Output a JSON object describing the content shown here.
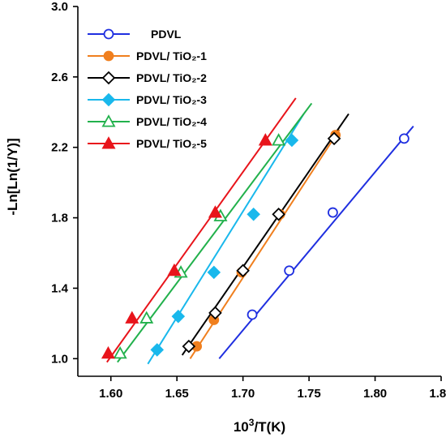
{
  "chart_data": {
    "type": "scatter",
    "title": "",
    "xlabel": "10³/T(K)",
    "ylabel": "-Ln[Ln(1/Y)]",
    "xlim": [
      1.575,
      1.85
    ],
    "ylim": [
      0.9,
      3.0
    ],
    "xticks": [
      1.6,
      1.65,
      1.7,
      1.75,
      1.8,
      1.85
    ],
    "xtick_labels": [
      "1.60",
      "1.65",
      "1.70",
      "1.75",
      "1.80",
      "1.85"
    ],
    "yticks": [
      1.0,
      1.4,
      1.8,
      2.2,
      2.6,
      3.0
    ],
    "ytick_labels": [
      "1.0",
      "1.4",
      "1.8",
      "2.2",
      "2.6",
      "3.0"
    ],
    "grid": false,
    "legend_position": "top-left",
    "series": [
      {
        "name": "PDVL",
        "color": "#1f2fe0",
        "marker": "circle-open",
        "x": [
          1.707,
          1.735,
          1.768,
          1.822
        ],
        "y": [
          1.25,
          1.5,
          1.83,
          2.25
        ],
        "fit": [
          [
            1.682,
            1.0
          ],
          [
            1.829,
            2.32
          ]
        ]
      },
      {
        "name": "PDVL/ TiO₂-1",
        "color": "#f07f1e",
        "marker": "circle-filled",
        "x": [
          1.665,
          1.678,
          1.699,
          1.728,
          1.77
        ],
        "y": [
          1.07,
          1.22,
          1.49,
          1.82,
          2.27
        ],
        "fit": [
          [
            1.66,
            1.0
          ],
          [
            1.773,
            2.3
          ]
        ]
      },
      {
        "name": "PDVL/ TiO₂-2",
        "color": "#000000",
        "marker": "diamond-open",
        "x": [
          1.659,
          1.679,
          1.7,
          1.727,
          1.769
        ],
        "y": [
          1.07,
          1.26,
          1.5,
          1.82,
          2.25
        ],
        "fit": [
          [
            1.654,
            1.02
          ],
          [
            1.78,
            2.39
          ]
        ]
      },
      {
        "name": "PDVL/ TiO₂-3",
        "color": "#19b8ec",
        "marker": "diamond-filled",
        "x": [
          1.635,
          1.651,
          1.678,
          1.708,
          1.737
        ],
        "y": [
          1.05,
          1.24,
          1.49,
          1.82,
          2.24
        ],
        "fit": [
          [
            1.628,
            0.97
          ],
          [
            1.746,
            2.39
          ]
        ]
      },
      {
        "name": "PDVL/ TiO₂-4",
        "color": "#22b14c",
        "marker": "triangle-open",
        "x": [
          1.607,
          1.627,
          1.653,
          1.683,
          1.727
        ],
        "y": [
          1.03,
          1.23,
          1.49,
          1.81,
          2.24
        ],
        "fit": [
          [
            1.605,
            0.98
          ],
          [
            1.752,
            2.45
          ]
        ]
      },
      {
        "name": "PDVL/ TiO₂-5",
        "color": "#e8141b",
        "marker": "triangle-filled",
        "x": [
          1.598,
          1.616,
          1.648,
          1.679,
          1.717
        ],
        "y": [
          1.03,
          1.23,
          1.5,
          1.83,
          2.24
        ],
        "fit": [
          [
            1.597,
            0.98
          ],
          [
            1.74,
            2.48
          ]
        ]
      }
    ]
  }
}
